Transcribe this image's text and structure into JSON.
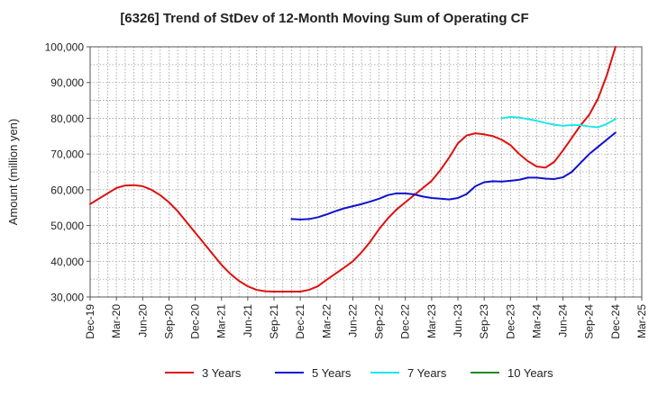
{
  "chart_data": {
    "type": "line",
    "title": "[6326]  Trend of StDev of 12-Month Moving Sum of Operating CF",
    "xlabel": "",
    "ylabel": "Amount (million yen)",
    "ylim": [
      30000,
      100000
    ],
    "y_ticks": [
      "30,000",
      "40,000",
      "50,000",
      "60,000",
      "70,000",
      "80,000",
      "90,000",
      "100,000"
    ],
    "x_ticks": [
      "Dec-19",
      "Mar-20",
      "Jun-20",
      "Sep-20",
      "Dec-20",
      "Mar-21",
      "Jun-21",
      "Sep-21",
      "Dec-21",
      "Mar-22",
      "Jun-22",
      "Sep-22",
      "Dec-22",
      "Mar-23",
      "Jun-23",
      "Sep-23",
      "Dec-23",
      "Mar-24",
      "Jun-24",
      "Sep-24",
      "Dec-24",
      "Mar-25"
    ],
    "grid": true,
    "legend_position": "bottom",
    "series": [
      {
        "name": "3 Years",
        "color": "#dd1111",
        "x": [
          "Dec-19",
          "Jan-20",
          "Feb-20",
          "Mar-20",
          "Apr-20",
          "May-20",
          "Jun-20",
          "Jul-20",
          "Aug-20",
          "Sep-20",
          "Oct-20",
          "Nov-20",
          "Dec-20",
          "Jan-21",
          "Feb-21",
          "Mar-21",
          "Apr-21",
          "May-21",
          "Jun-21",
          "Jul-21",
          "Aug-21",
          "Sep-21",
          "Oct-21",
          "Nov-21",
          "Dec-21",
          "Jan-22",
          "Feb-22",
          "Mar-22",
          "Apr-22",
          "May-22",
          "Jun-22",
          "Jul-22",
          "Aug-22",
          "Sep-22",
          "Oct-22",
          "Nov-22",
          "Dec-22",
          "Jan-23",
          "Feb-23",
          "Mar-23",
          "Apr-23",
          "May-23",
          "Jun-23",
          "Jul-23",
          "Aug-23",
          "Sep-23",
          "Oct-23",
          "Nov-23",
          "Dec-23",
          "Jan-24",
          "Feb-24",
          "Mar-24",
          "Apr-24",
          "May-24",
          "Jun-24",
          "Jul-24",
          "Aug-24",
          "Sep-24",
          "Oct-24",
          "Nov-24",
          "Dec-24"
        ],
        "values": [
          56000,
          57500,
          59000,
          60500,
          61200,
          61300,
          61000,
          60000,
          58500,
          56500,
          54000,
          51000,
          48000,
          45000,
          42000,
          39000,
          36500,
          34500,
          33000,
          32000,
          31600,
          31500,
          31500,
          31500,
          31500,
          32000,
          33000,
          34800,
          36500,
          38200,
          40000,
          42500,
          45500,
          49000,
          52000,
          54500,
          56500,
          58500,
          60500,
          62500,
          65500,
          69000,
          73000,
          75200,
          75800,
          75500,
          75000,
          74000,
          72500,
          70000,
          68000,
          66500,
          66200,
          67800,
          71000,
          74500,
          78000,
          81000,
          85500,
          92000,
          100000
        ]
      },
      {
        "name": "5 Years",
        "color": "#1111cc",
        "x": [
          "Nov-21",
          "Dec-21",
          "Jan-22",
          "Feb-22",
          "Mar-22",
          "Apr-22",
          "May-22",
          "Jun-22",
          "Jul-22",
          "Aug-22",
          "Sep-22",
          "Oct-22",
          "Nov-22",
          "Dec-22",
          "Jan-23",
          "Feb-23",
          "Mar-23",
          "Apr-23",
          "May-23",
          "Jun-23",
          "Jul-23",
          "Aug-23",
          "Sep-23",
          "Oct-23",
          "Nov-23",
          "Dec-23",
          "Jan-24",
          "Feb-24",
          "Mar-24",
          "Apr-24",
          "May-24",
          "Jun-24",
          "Jul-24",
          "Aug-24",
          "Sep-24",
          "Oct-24",
          "Nov-24",
          "Dec-24"
        ],
        "values": [
          51800,
          51700,
          51800,
          52300,
          53100,
          54000,
          54800,
          55400,
          56000,
          56700,
          57500,
          58500,
          59000,
          59000,
          58700,
          58100,
          57700,
          57500,
          57300,
          57700,
          58800,
          61000,
          62100,
          62400,
          62300,
          62500,
          62800,
          63400,
          63400,
          63100,
          63000,
          63500,
          65000,
          67500,
          70000,
          72000,
          74000,
          76000
        ]
      },
      {
        "name": "7 Years",
        "color": "#22e5e5",
        "x": [
          "Nov-23",
          "Dec-23",
          "Jan-24",
          "Feb-24",
          "Mar-24",
          "Apr-24",
          "May-24",
          "Jun-24",
          "Jul-24",
          "Aug-24",
          "Sep-24",
          "Oct-24",
          "Nov-24",
          "Dec-24"
        ],
        "values": [
          80000,
          80400,
          80200,
          79800,
          79300,
          78700,
          78200,
          77900,
          78100,
          78100,
          77700,
          77500,
          78400,
          79800
        ]
      },
      {
        "name": "10 Years",
        "color": "#228822",
        "x": [],
        "values": []
      }
    ]
  }
}
